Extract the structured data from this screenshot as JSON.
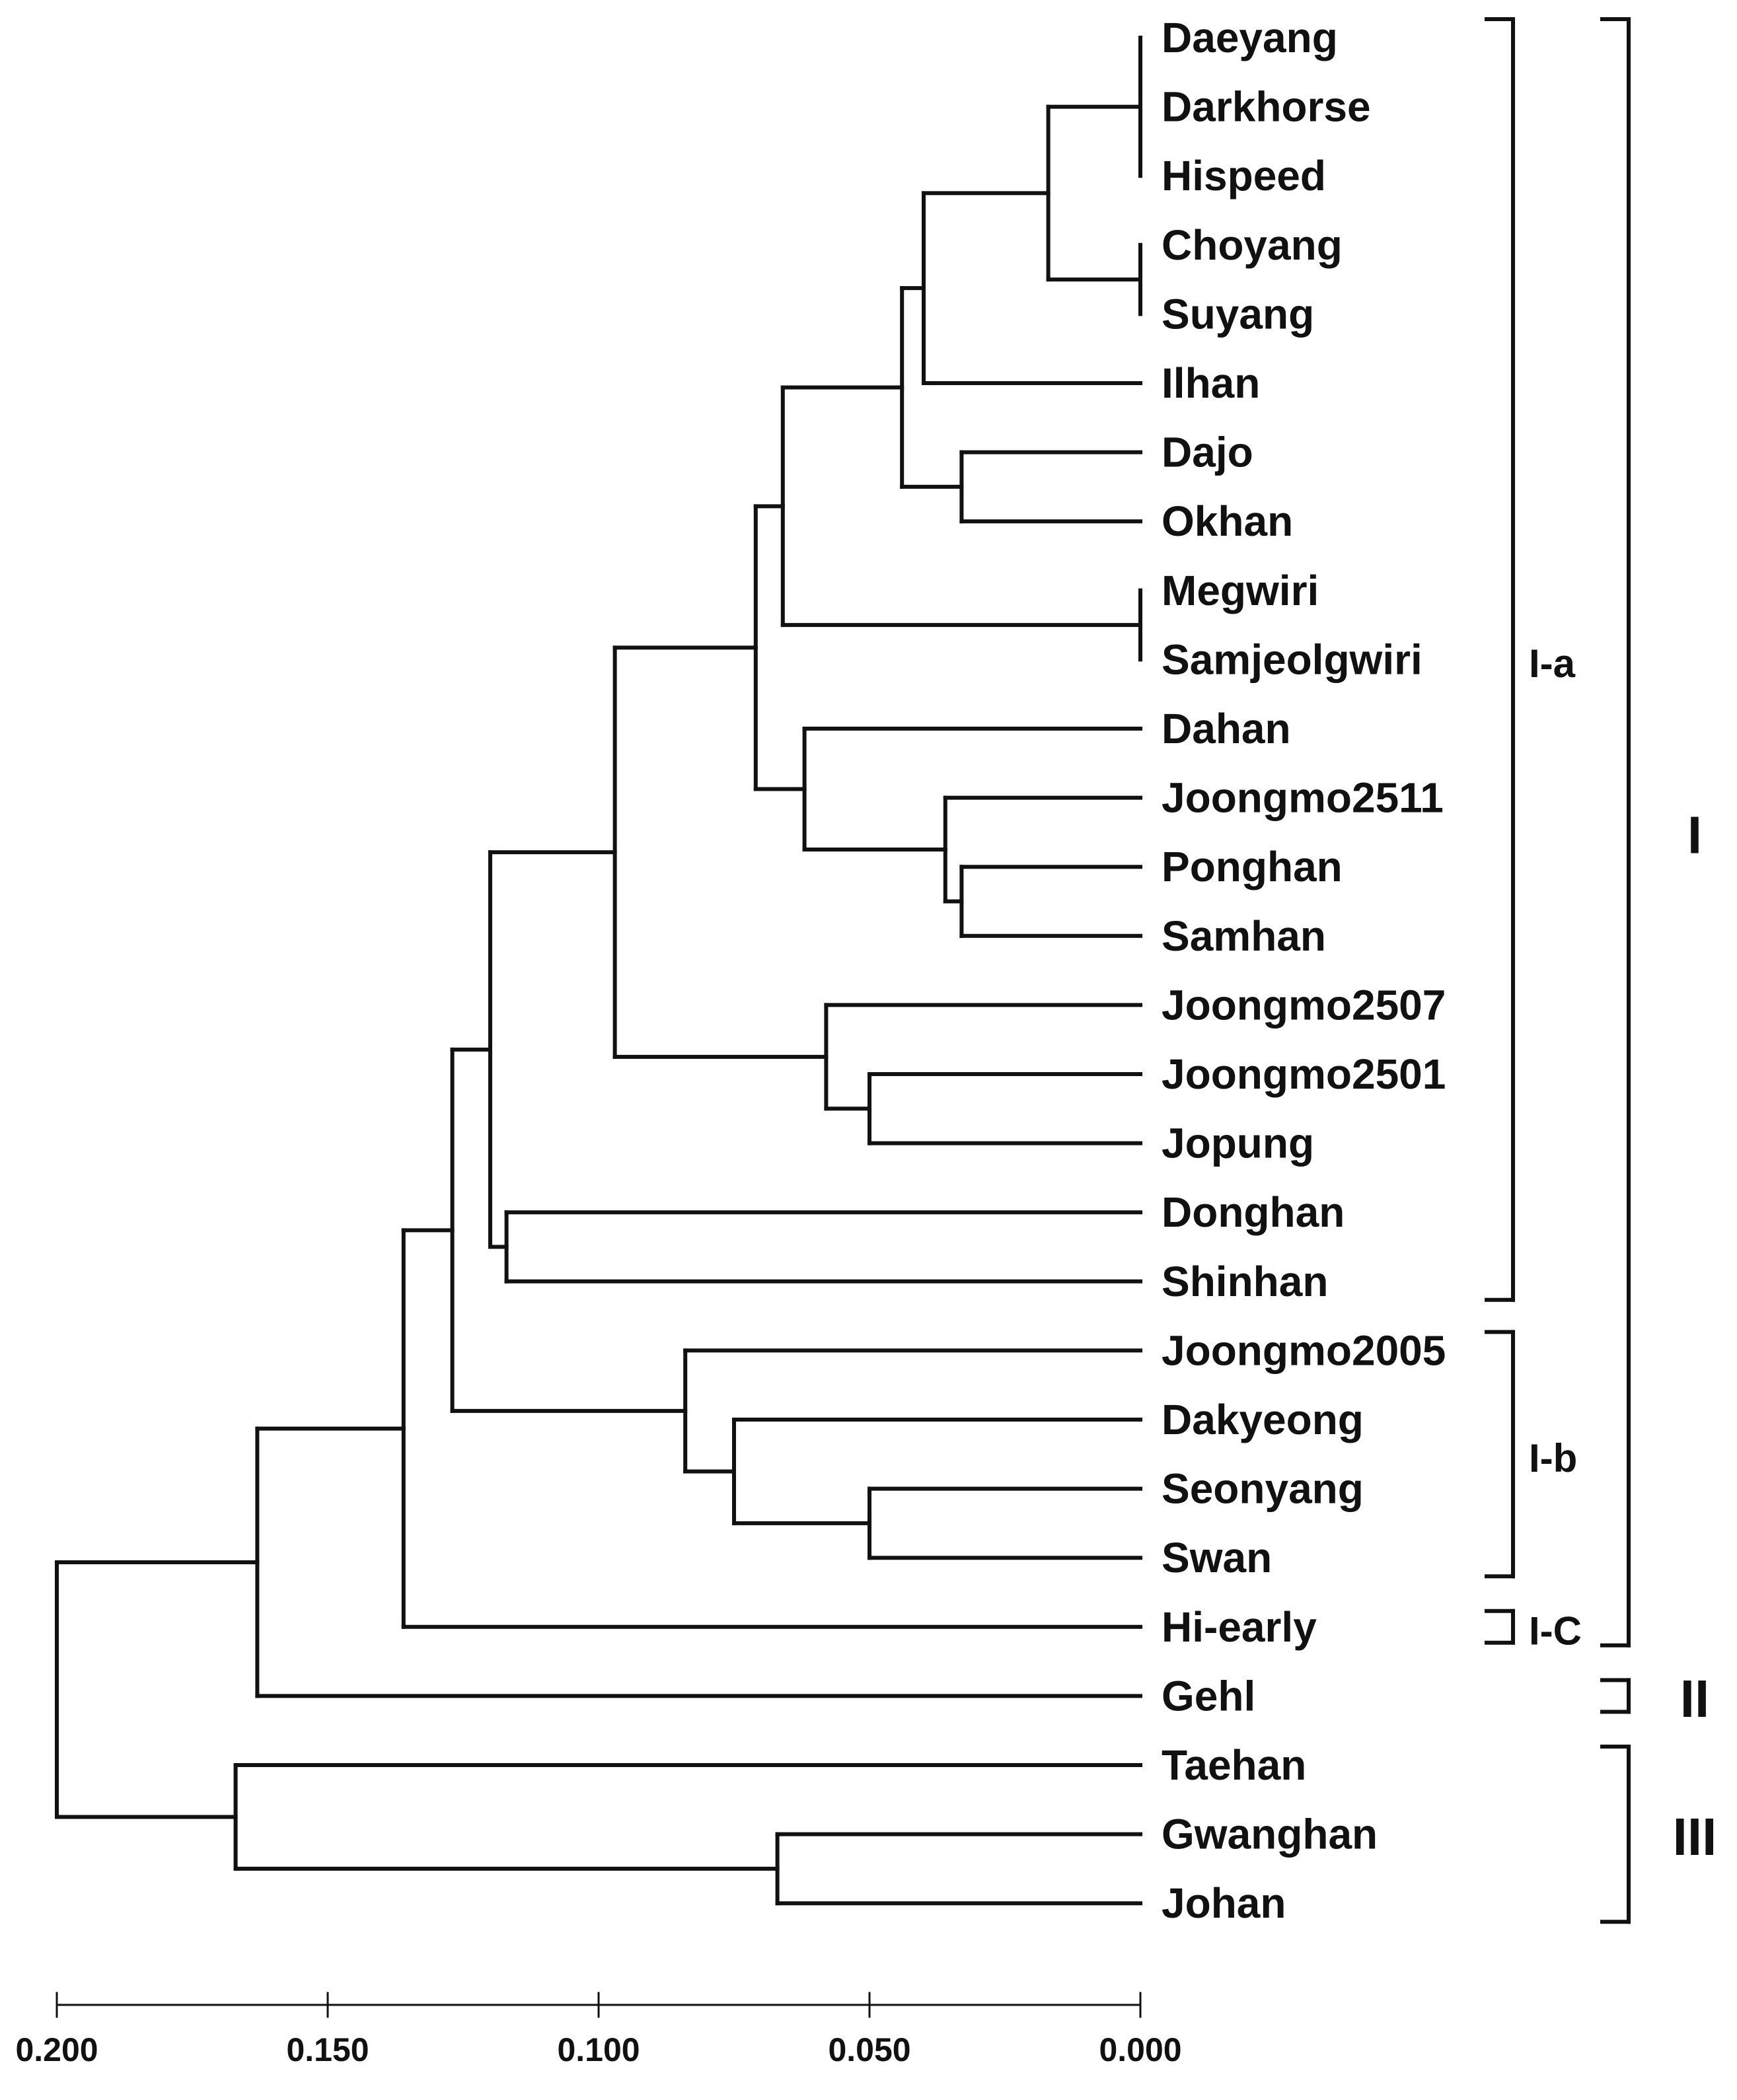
{
  "chart_data": {
    "type": "dendrogram",
    "title": "",
    "xlabel": "",
    "x_axis": {
      "min": 0.2,
      "max": 0.0,
      "ticks": [
        "0.200",
        "0.150",
        "0.100",
        "0.050",
        "0.000"
      ]
    },
    "leaves": [
      "Daeyang",
      "Darkhorse",
      "Hispeed",
      "Choyang",
      "Suyang",
      "Ilhan",
      "Dajo",
      "Okhan",
      "Megwiri",
      "Samjeolgwiri",
      "Dahan",
      "Joongmo2511",
      "Ponghan",
      "Samhan",
      "Joongmo2507",
      "Joongmo2501",
      "Jopung",
      "Donghan",
      "Shinhan",
      "Joongmo2005",
      "Dakyeong",
      "Seonyang",
      "Swan",
      "Hi-early",
      "Gehl",
      "Taehan",
      "Gwanghan",
      "Johan"
    ],
    "merges": [
      {
        "children": [
          "Daeyang",
          "Darkhorse",
          "Hispeed"
        ],
        "height": 0.0
      },
      {
        "children": [
          "Choyang",
          "Suyang"
        ],
        "height": 0.0
      },
      {
        "children": [
          "Megwiri",
          "Samjeolgwiri"
        ],
        "height": 0.0
      },
      {
        "children": [
          "Ponghan",
          "Samhan"
        ],
        "height": 0.033
      },
      {
        "children": [
          "Dajo",
          "Okhan"
        ],
        "height": 0.033
      },
      {
        "children": [
          "Joongmo2511",
          "Ponghan+Samhan"
        ],
        "height": 0.036
      },
      {
        "children": [
          "Daeyang+Darkhorse+Hispeed",
          "Choyang+Suyang"
        ],
        "height": 0.017
      },
      {
        "children": [
          "Daeyang..Suyang",
          "Ilhan"
        ],
        "height": 0.04
      },
      {
        "children": [
          "Daeyang..Ilhan",
          "Dajo+Okhan"
        ],
        "height": 0.044
      },
      {
        "children": [
          "Daeyang..Okhan",
          "Megwiri+Samjeolgwiri"
        ],
        "height": 0.066
      },
      {
        "children": [
          "Dahan",
          "Joongmo2511+Ponghan+Samhan"
        ],
        "height": 0.062
      },
      {
        "children": [
          "Daeyang..Samjeolgwiri",
          "Dahan..Samhan"
        ],
        "height": 0.071
      },
      {
        "children": [
          "Joongmo2501",
          "Jopung"
        ],
        "height": 0.05
      },
      {
        "children": [
          "Joongmo2507",
          "Joongmo2501+Jopung"
        ],
        "height": 0.058
      },
      {
        "children": [
          "Daeyang..Samhan",
          "Joongmo2507..Jopung"
        ],
        "height": 0.097
      },
      {
        "children": [
          "Donghan",
          "Shinhan"
        ],
        "height": 0.117
      },
      {
        "children": [
          "Daeyang..Jopung",
          "Donghan+Shinhan"
        ],
        "height": 0.12
      },
      {
        "children": [
          "Seonyang",
          "Swan"
        ],
        "height": 0.05
      },
      {
        "children": [
          "Dakyeong",
          "Seonyang+Swan"
        ],
        "height": 0.075
      },
      {
        "children": [
          "Joongmo2005",
          "Dakyeong..Swan"
        ],
        "height": 0.084
      },
      {
        "children": [
          "I-a",
          "I-b"
        ],
        "height": 0.127
      },
      {
        "children": [
          "I-a+I-b",
          "Hi-early"
        ],
        "height": 0.136
      },
      {
        "children": [
          "I",
          "Gehl"
        ],
        "height": 0.163
      },
      {
        "children": [
          "Gwanghan",
          "Johan"
        ],
        "height": 0.067
      },
      {
        "children": [
          "Taehan",
          "Gwanghan+Johan"
        ],
        "height": 0.167
      },
      {
        "children": [
          "I+II",
          "III"
        ],
        "height": 0.2
      }
    ],
    "groups": [
      {
        "label": "I-a",
        "from": "Daeyang",
        "to": "Shinhan"
      },
      {
        "label": "I-b",
        "from": "Joongmo2005",
        "to": "Swan"
      },
      {
        "label": "I-C",
        "from": "Hi-early",
        "to": "Hi-early"
      }
    ],
    "clusters": [
      {
        "label": "I",
        "from": "Daeyang",
        "to": "Hi-early"
      },
      {
        "label": "II",
        "from": "Gehl",
        "to": "Gehl"
      },
      {
        "label": "III",
        "from": "Taehan",
        "to": "Johan"
      }
    ]
  }
}
